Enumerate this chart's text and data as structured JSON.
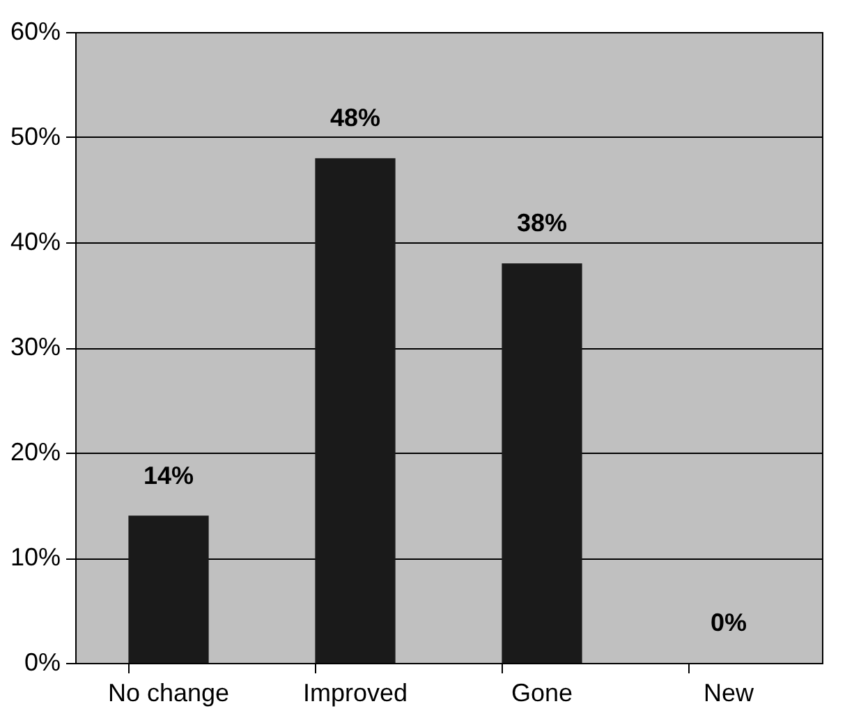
{
  "chart_data": {
    "type": "bar",
    "categories": [
      "No change",
      "Improved",
      "Gone",
      "New"
    ],
    "values": [
      14,
      48,
      38,
      0
    ],
    "color": "#1a1a1a",
    "value_labels": [
      "14%",
      "48%",
      "38%",
      "0%"
    ],
    "ylim": [
      0,
      60
    ],
    "yticks": [
      {
        "value": 0,
        "label": "0%"
      },
      {
        "value": 10,
        "label": "10%"
      },
      {
        "value": 20,
        "label": "20%"
      },
      {
        "value": 30,
        "label": "30%"
      },
      {
        "value": 40,
        "label": "40%"
      },
      {
        "value": 50,
        "label": "50%"
      },
      {
        "value": 60,
        "label": "60%"
      }
    ],
    "grid": "y"
  }
}
